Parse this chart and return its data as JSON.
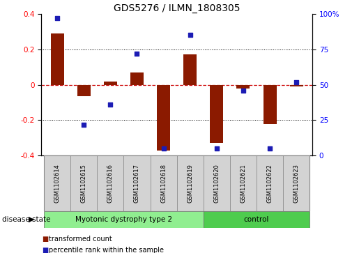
{
  "title": "GDS5276 / ILMN_1808305",
  "samples": [
    "GSM1102614",
    "GSM1102615",
    "GSM1102616",
    "GSM1102617",
    "GSM1102618",
    "GSM1102619",
    "GSM1102620",
    "GSM1102621",
    "GSM1102622",
    "GSM1102623"
  ],
  "red_values": [
    0.29,
    -0.065,
    0.02,
    0.07,
    -0.37,
    0.17,
    -0.33,
    -0.02,
    -0.22,
    -0.01
  ],
  "blue_values": [
    97,
    22,
    36,
    72,
    5,
    85,
    5,
    46,
    5,
    52
  ],
  "red_color": "#8B1A00",
  "blue_color": "#1C1CB4",
  "ylim_left": [
    -0.4,
    0.4
  ],
  "ylim_right": [
    0,
    100
  ],
  "yticks_left": [
    -0.4,
    -0.2,
    0.0,
    0.2,
    0.4
  ],
  "ytick_labels_left": [
    "-0.4",
    "-0.2",
    "0",
    "0.2",
    "0.4"
  ],
  "yticks_right": [
    0,
    25,
    50,
    75,
    100
  ],
  "ytick_labels_right": [
    "0",
    "25",
    "50",
    "75",
    "100%"
  ],
  "disease_state_label": "disease state",
  "legend_red_label": "transformed count",
  "legend_blue_label": "percentile rank within the sample",
  "bar_width": 0.5,
  "dot_size": 22,
  "zero_line_color": "#CC0000",
  "bg_color": "#FFFFFF",
  "sample_box_color": "#D3D3D3",
  "myotonic_color": "#90EE90",
  "control_color": "#4ECC4E",
  "n_myotonic": 6,
  "n_control": 4
}
